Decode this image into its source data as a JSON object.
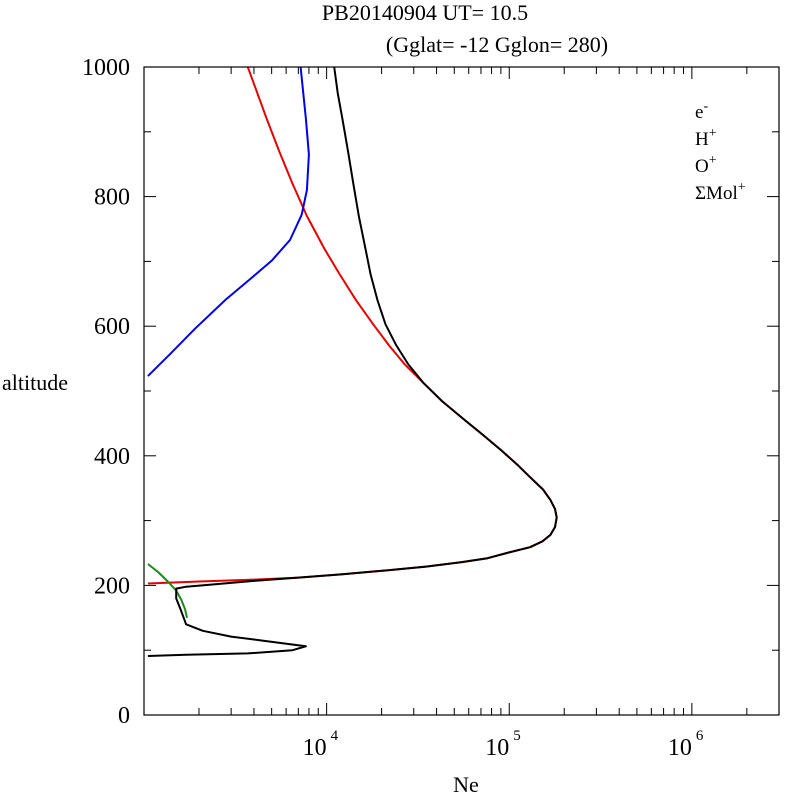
{
  "chart_data": {
    "type": "line",
    "title": "PB20140904   UT=  10.5",
    "subtitle": "(Gglat= -12   Gglon=  280)",
    "xlabel": "Ne",
    "ylabel": "altitude",
    "xscale": "log",
    "xlim": [
      1000,
      3000000
    ],
    "ylim": [
      0,
      1000
    ],
    "x_ticks": [
      {
        "base": "10",
        "exp": "4",
        "value": 10000
      },
      {
        "base": "10",
        "exp": "5",
        "value": 100000
      },
      {
        "base": "10",
        "exp": "6",
        "value": 1000000
      }
    ],
    "y_ticks": [
      "0",
      "200",
      "400",
      "600",
      "800",
      "1000"
    ],
    "legend_position": "top-right",
    "series": [
      {
        "name": "e",
        "name_sup": "-",
        "color": "#000000",
        "points": [
          [
            1050,
            91
          ],
          [
            1700,
            93
          ],
          [
            3700,
            95
          ],
          [
            6500,
            100
          ],
          [
            7700,
            106
          ],
          [
            6400,
            109
          ],
          [
            4400,
            115
          ],
          [
            3000,
            121
          ],
          [
            2100,
            130
          ],
          [
            1700,
            140
          ],
          [
            1600,
            160
          ],
          [
            1500,
            180
          ],
          [
            1500,
            195
          ],
          [
            1700,
            198
          ],
          [
            2500,
            202
          ],
          [
            4000,
            207
          ],
          [
            7000,
            212
          ],
          [
            12000,
            217
          ],
          [
            21000,
            223
          ],
          [
            35000,
            229
          ],
          [
            55000,
            236
          ],
          [
            76000,
            242
          ],
          [
            100000,
            251
          ],
          [
            130000,
            259
          ],
          [
            152000,
            268
          ],
          [
            168000,
            278
          ],
          [
            178000,
            290
          ],
          [
            182000,
            305
          ],
          [
            178000,
            318
          ],
          [
            168000,
            332
          ],
          [
            153000,
            348
          ],
          [
            130000,
            367
          ],
          [
            110000,
            387
          ],
          [
            90000,
            409
          ],
          [
            72000,
            432
          ],
          [
            56000,
            457
          ],
          [
            43000,
            484
          ],
          [
            34000,
            512
          ],
          [
            28000,
            541
          ],
          [
            24000,
            571
          ],
          [
            21000,
            603
          ],
          [
            19000,
            640
          ],
          [
            17400,
            680
          ],
          [
            16300,
            720
          ],
          [
            15000,
            770
          ],
          [
            14000,
            820
          ],
          [
            13100,
            870
          ],
          [
            12200,
            920
          ],
          [
            11500,
            960
          ],
          [
            11000,
            1000
          ]
        ]
      },
      {
        "name": "H",
        "name_sup": "+",
        "color": "#0000e6",
        "points": [
          [
            1050,
            523
          ],
          [
            1400,
            558
          ],
          [
            1900,
            596
          ],
          [
            2800,
            641
          ],
          [
            3900,
            675
          ],
          [
            5000,
            701
          ],
          [
            6300,
            733
          ],
          [
            7300,
            772
          ],
          [
            7800,
            810
          ],
          [
            8000,
            865
          ],
          [
            7700,
            920
          ],
          [
            7200,
            1000
          ]
        ]
      },
      {
        "name": "O",
        "name_sup": "+",
        "color": "#e60000",
        "points": [
          [
            1050,
            203
          ],
          [
            2000,
            206
          ],
          [
            4000,
            209
          ],
          [
            7000,
            212
          ],
          [
            12000,
            217
          ],
          [
            21000,
            223
          ],
          [
            35000,
            229
          ],
          [
            55000,
            236
          ],
          [
            76000,
            242
          ],
          [
            100000,
            251
          ],
          [
            130000,
            259
          ],
          [
            152000,
            268
          ],
          [
            168000,
            278
          ],
          [
            178000,
            290
          ],
          [
            182000,
            305
          ],
          [
            178000,
            318
          ],
          [
            168000,
            332
          ],
          [
            153000,
            348
          ],
          [
            130000,
            367
          ],
          [
            110000,
            387
          ],
          [
            90000,
            409
          ],
          [
            72000,
            432
          ],
          [
            56000,
            457
          ],
          [
            43000,
            484
          ],
          [
            34000,
            512
          ],
          [
            27000,
            540
          ],
          [
            22000,
            570
          ],
          [
            18000,
            603
          ],
          [
            14500,
            640
          ],
          [
            11800,
            680
          ],
          [
            9700,
            720
          ],
          [
            7800,
            770
          ],
          [
            6500,
            820
          ],
          [
            5500,
            870
          ],
          [
            4700,
            920
          ],
          [
            3700,
            1000
          ]
        ]
      },
      {
        "name": "ΣMol",
        "name_sup": "+",
        "color": "#1a8a1a",
        "points": [
          [
            1050,
            233
          ],
          [
            1200,
            220
          ],
          [
            1350,
            206
          ],
          [
            1500,
            192
          ],
          [
            1600,
            178
          ],
          [
            1680,
            163
          ],
          [
            1720,
            150
          ]
        ]
      }
    ]
  }
}
